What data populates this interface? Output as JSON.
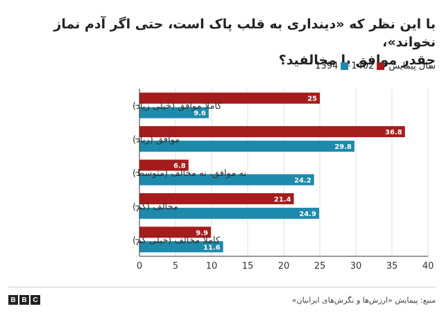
{
  "title_line1": "با این نظر که «دینداری به قلب پاک است، حتی اگر آدم نماز نخواند»،",
  "title_line2": "چقدر موافق یا مخالفید؟",
  "legend": {
    "label": "سال پیمایش",
    "items": [
      {
        "name": "1402",
        "color": "#a51c1c"
      },
      {
        "name": "1394",
        "color": "#1e8aab"
      }
    ]
  },
  "source": "منبع: پیمایش «ارزش‌ها و نگرش‌های ایرانیان»",
  "logo": [
    "B",
    "B",
    "C"
  ],
  "chart_data": {
    "type": "bar",
    "orientation": "horizontal",
    "categories": [
      "کاملا موافق (خیلی زیاد)",
      "موافق (زیاد)",
      "نه موافق، نه مخالف (متوسط)",
      "مخالف (کم)",
      "کاملا مخالف (خیلی کم)"
    ],
    "series": [
      {
        "name": "1402",
        "color": "#a51c1c",
        "values": [
          25,
          36.8,
          6.8,
          21.4,
          9.9
        ]
      },
      {
        "name": "1394",
        "color": "#1e8aab",
        "values": [
          9.6,
          29.8,
          24.2,
          24.9,
          11.6
        ]
      }
    ],
    "xlim": [
      0,
      40
    ],
    "xticks": [
      0,
      5,
      10,
      15,
      20,
      25,
      30,
      35,
      40
    ],
    "grid": true,
    "legend_position": "top-right"
  }
}
